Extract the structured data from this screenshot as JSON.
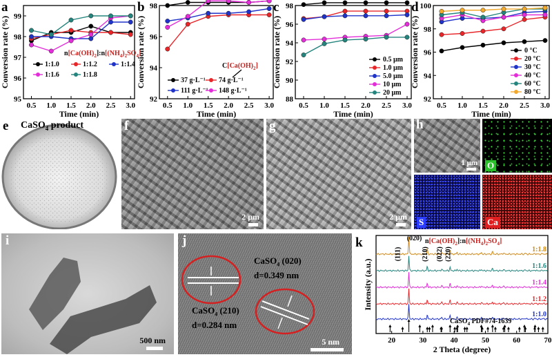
{
  "chart_data": [
    {
      "panel": "a",
      "type": "line",
      "xlabel": "Time (min)",
      "ylabel": "Conversion rate (%)",
      "xlim": [
        0.3,
        3.1
      ],
      "ylim": [
        95,
        99.5
      ],
      "xticks": [
        "0.5",
        "1.0",
        "1.5",
        "2.0",
        "2.5",
        "3.0"
      ],
      "yticks": [
        "95",
        "96",
        "97",
        "98",
        "99"
      ],
      "x": [
        0.5,
        1.0,
        1.5,
        2.0,
        2.5,
        3.0
      ],
      "legend_title": {
        "prefix": "n",
        "a": "[Ca(OH)",
        "a_sub": "2",
        "sep": "]:n",
        "b": "[(NH",
        "b_sub1": "4",
        "b_mid": ")",
        "b_sub2": "2",
        "b_end": "SO",
        "b_sub3": "4",
        "close": "]"
      },
      "series": [
        {
          "name": "1:1.0",
          "color": "#000000",
          "values": [
            97.8,
            98.2,
            98.2,
            98.5,
            98.2,
            98.2
          ]
        },
        {
          "name": "1:1.2",
          "color": "#e8262a",
          "values": [
            97.9,
            98.1,
            98.3,
            98.2,
            98.2,
            98.1
          ]
        },
        {
          "name": "1:1.4",
          "color": "#1f33c9",
          "values": [
            98.0,
            98.0,
            97.9,
            97.9,
            98.7,
            98.7
          ]
        },
        {
          "name": "1:1.6",
          "color": "#e32dd9",
          "values": [
            97.6,
            97.3,
            97.8,
            98.1,
            98.9,
            99.0
          ]
        },
        {
          "name": "1:1.8",
          "color": "#23857d",
          "values": [
            98.3,
            98.1,
            98.8,
            99.0,
            99.0,
            99.0
          ]
        }
      ]
    },
    {
      "panel": "b",
      "type": "line",
      "xlabel": "Time (min)",
      "ylabel": "Conversion rate (%)",
      "xlim": [
        0.3,
        3.1
      ],
      "ylim": [
        92,
        98
      ],
      "xticks": [
        "0.5",
        "1.0",
        "1.5",
        "2.0",
        "2.5",
        "3.0"
      ],
      "yticks": [
        "92",
        "94",
        "96",
        "98"
      ],
      "x": [
        0.5,
        1.0,
        1.5,
        2.0,
        2.5,
        3.0
      ],
      "legend_title": {
        "prefix": "C",
        "a": "[Ca(OH)",
        "a_sub": "2",
        "close": "]"
      },
      "series": [
        {
          "name": "37 g·L⁻¹",
          "color": "#000000",
          "values": [
            98.0,
            98.2,
            98.2,
            98.2,
            98.2,
            98.3
          ]
        },
        {
          "name": "74 g·L⁻¹",
          "color": "#e8262a",
          "values": [
            95.2,
            96.8,
            97.3,
            97.4,
            97.4,
            97.4
          ]
        },
        {
          "name": "111 g·L⁻¹",
          "color": "#1f33c9",
          "values": [
            97.0,
            97.2,
            97.5,
            97.5,
            97.6,
            97.8
          ]
        },
        {
          "name": "148 g·L⁻¹",
          "color": "#e32dd9",
          "values": [
            96.6,
            97.3,
            98.3,
            98.3,
            98.2,
            98.3
          ]
        }
      ]
    },
    {
      "panel": "c",
      "type": "line",
      "xlabel": "Time (min)",
      "ylabel": "Conversion rate (%)",
      "xlim": [
        0.3,
        3.1
      ],
      "ylim": [
        88,
        98
      ],
      "xticks": [
        "0.5",
        "1.0",
        "1.5",
        "2.0",
        "2.5",
        "3.0"
      ],
      "yticks": [
        "88",
        "90",
        "92",
        "94",
        "96",
        "98"
      ],
      "x": [
        0.5,
        1.0,
        1.5,
        2.0,
        2.5,
        3.0
      ],
      "series": [
        {
          "name": "0.5 μm",
          "color": "#000000",
          "values": [
            98.1,
            98.3,
            98.3,
            98.3,
            98.3,
            98.3
          ]
        },
        {
          "name": "1.0 μm",
          "color": "#e8262a",
          "values": [
            96.6,
            96.8,
            97.4,
            97.4,
            97.4,
            97.4
          ]
        },
        {
          "name": "5.0 μm",
          "color": "#1f33c9",
          "values": [
            96.5,
            96.8,
            96.9,
            96.9,
            96.9,
            97.0
          ]
        },
        {
          "name": "10 μm",
          "color": "#e32dd9",
          "values": [
            94.3,
            94.4,
            94.6,
            94.7,
            94.8,
            96.0
          ]
        },
        {
          "name": "20 μm",
          "color": "#23857d",
          "values": [
            92.7,
            93.9,
            94.3,
            94.4,
            94.6,
            94.6
          ]
        }
      ]
    },
    {
      "panel": "d",
      "type": "line",
      "xlabel": "Time (min)",
      "ylabel": "Conversion rate (%)",
      "xlim": [
        0.3,
        3.1
      ],
      "ylim": [
        92,
        100
      ],
      "xticks": [
        "0.5",
        "1.0",
        "1.5",
        "2.0",
        "2.5",
        "3.0"
      ],
      "yticks": [
        "92",
        "94",
        "96",
        "98",
        "100"
      ],
      "x": [
        0.5,
        1.0,
        1.5,
        2.0,
        2.5,
        3.0
      ],
      "series": [
        {
          "name": "0 °C",
          "color": "#000000",
          "values": [
            96.1,
            96.4,
            96.6,
            96.8,
            96.9,
            97.0
          ]
        },
        {
          "name": "20 °C",
          "color": "#e8262a",
          "values": [
            97.5,
            97.6,
            97.8,
            98.0,
            98.8,
            99.0
          ]
        },
        {
          "name": "30 °C",
          "color": "#1f33c9",
          "values": [
            98.6,
            98.9,
            98.9,
            99.0,
            99.4,
            99.5
          ]
        },
        {
          "name": "40 °C",
          "color": "#e32dd9",
          "values": [
            98.9,
            99.2,
            98.7,
            99.0,
            99.2,
            99.2
          ]
        },
        {
          "name": "60 °C",
          "color": "#23857d",
          "values": [
            99.2,
            99.4,
            99.0,
            99.4,
            99.7,
            99.7
          ]
        },
        {
          "name": "80 °C",
          "color": "#f2a92c",
          "values": [
            99.5,
            99.6,
            99.6,
            99.7,
            99.7,
            99.8
          ]
        }
      ]
    },
    {
      "panel": "k",
      "type": "line",
      "xlabel": "2 Theta (degree)",
      "ylabel": "Intensity (a.u.)",
      "xlim": [
        15,
        70
      ],
      "xticks": [
        "20",
        "30",
        "40",
        "50",
        "60",
        "70"
      ],
      "legend_title": {
        "prefix": "n",
        "a": "[Ca(OH)",
        "a_sub": "2",
        "sep": "]:n",
        "b": "[(NH",
        "b_sub1": "4",
        "b_mid": ")",
        "b_sub2": "2",
        "b_end": "SO",
        "b_sub3": "4",
        "close": "]"
      },
      "peak_labels": [
        {
          "text": "(111)",
          "x": 23.5
        },
        {
          "text": "(020)",
          "x": 25.5
        },
        {
          "text": "(210)",
          "x": 31.4
        },
        {
          "text": "(022)",
          "x": 36.0
        },
        {
          "text": "(220)",
          "x": 38.7
        }
      ],
      "peaks": [
        {
          "x": 25.5,
          "h": 1.0
        },
        {
          "x": 31.4,
          "h": 0.28
        },
        {
          "x": 36.0,
          "h": 0.12
        },
        {
          "x": 38.7,
          "h": 0.22
        },
        {
          "x": 40.9,
          "h": 0.1
        },
        {
          "x": 48.7,
          "h": 0.1
        },
        {
          "x": 52.3,
          "h": 0.14
        },
        {
          "x": 55.8,
          "h": 0.08
        },
        {
          "x": 62.8,
          "h": 0.06
        },
        {
          "x": 65.9,
          "h": 0.05
        },
        {
          "x": 68.4,
          "h": 0.04
        }
      ],
      "series": [
        {
          "name": "1:1.0",
          "color": "#1f33c9"
        },
        {
          "name": "1:1.2",
          "color": "#e8262a"
        },
        {
          "name": "1:1.4",
          "color": "#e32dd9"
        },
        {
          "name": "1:1.6",
          "color": "#23857d"
        },
        {
          "name": "1:1.8",
          "color": "#d08a1a"
        }
      ],
      "reference": {
        "text": "CaSO",
        "sub": "4",
        "tail": " PDF#74-1639",
        "lines": [
          19.5,
          23.5,
          25.5,
          29.0,
          31.4,
          32.1,
          33.1,
          35.8,
          36.0,
          38.7,
          40.2,
          40.9,
          41.1,
          43.4,
          44.1,
          48.7,
          49.0,
          50.8,
          52.3,
          53.2,
          55.8,
          56.2,
          57.4,
          60.9,
          62.5,
          62.8,
          65.8,
          65.9,
          67.0,
          68.4
        ]
      }
    }
  ],
  "panels": {
    "e": {
      "letter": "e",
      "caption_main": "CaSO",
      "caption_sub": "4",
      "caption_tail": " product"
    },
    "f": {
      "letter": "f",
      "scale": "2 μm"
    },
    "g": {
      "letter": "g",
      "scale": "2 μm"
    },
    "h": {
      "letter": "h",
      "scale": "1 μm",
      "elements": [
        "O",
        "S",
        "Ca"
      ]
    },
    "i": {
      "letter": "i",
      "scale": "500 nm"
    },
    "j": {
      "letter": "j",
      "scale": "5 nm",
      "ann1_main": "CaSO",
      "ann1_sub": "4",
      "ann1_tail": " (020)",
      "ann1_d": "d=0.349 nm",
      "ann2_main": "CaSO",
      "ann2_sub": "4",
      "ann2_tail": " (210)",
      "ann2_d": "d=0.284 nm"
    },
    "k": {
      "letter": "k"
    }
  },
  "colors": {
    "eds_O": "#3fd93f",
    "eds_S": "#2a3cff",
    "eds_Ca": "#ff2a2a",
    "scalebar": "#ffffff",
    "ring": "#d42020"
  }
}
